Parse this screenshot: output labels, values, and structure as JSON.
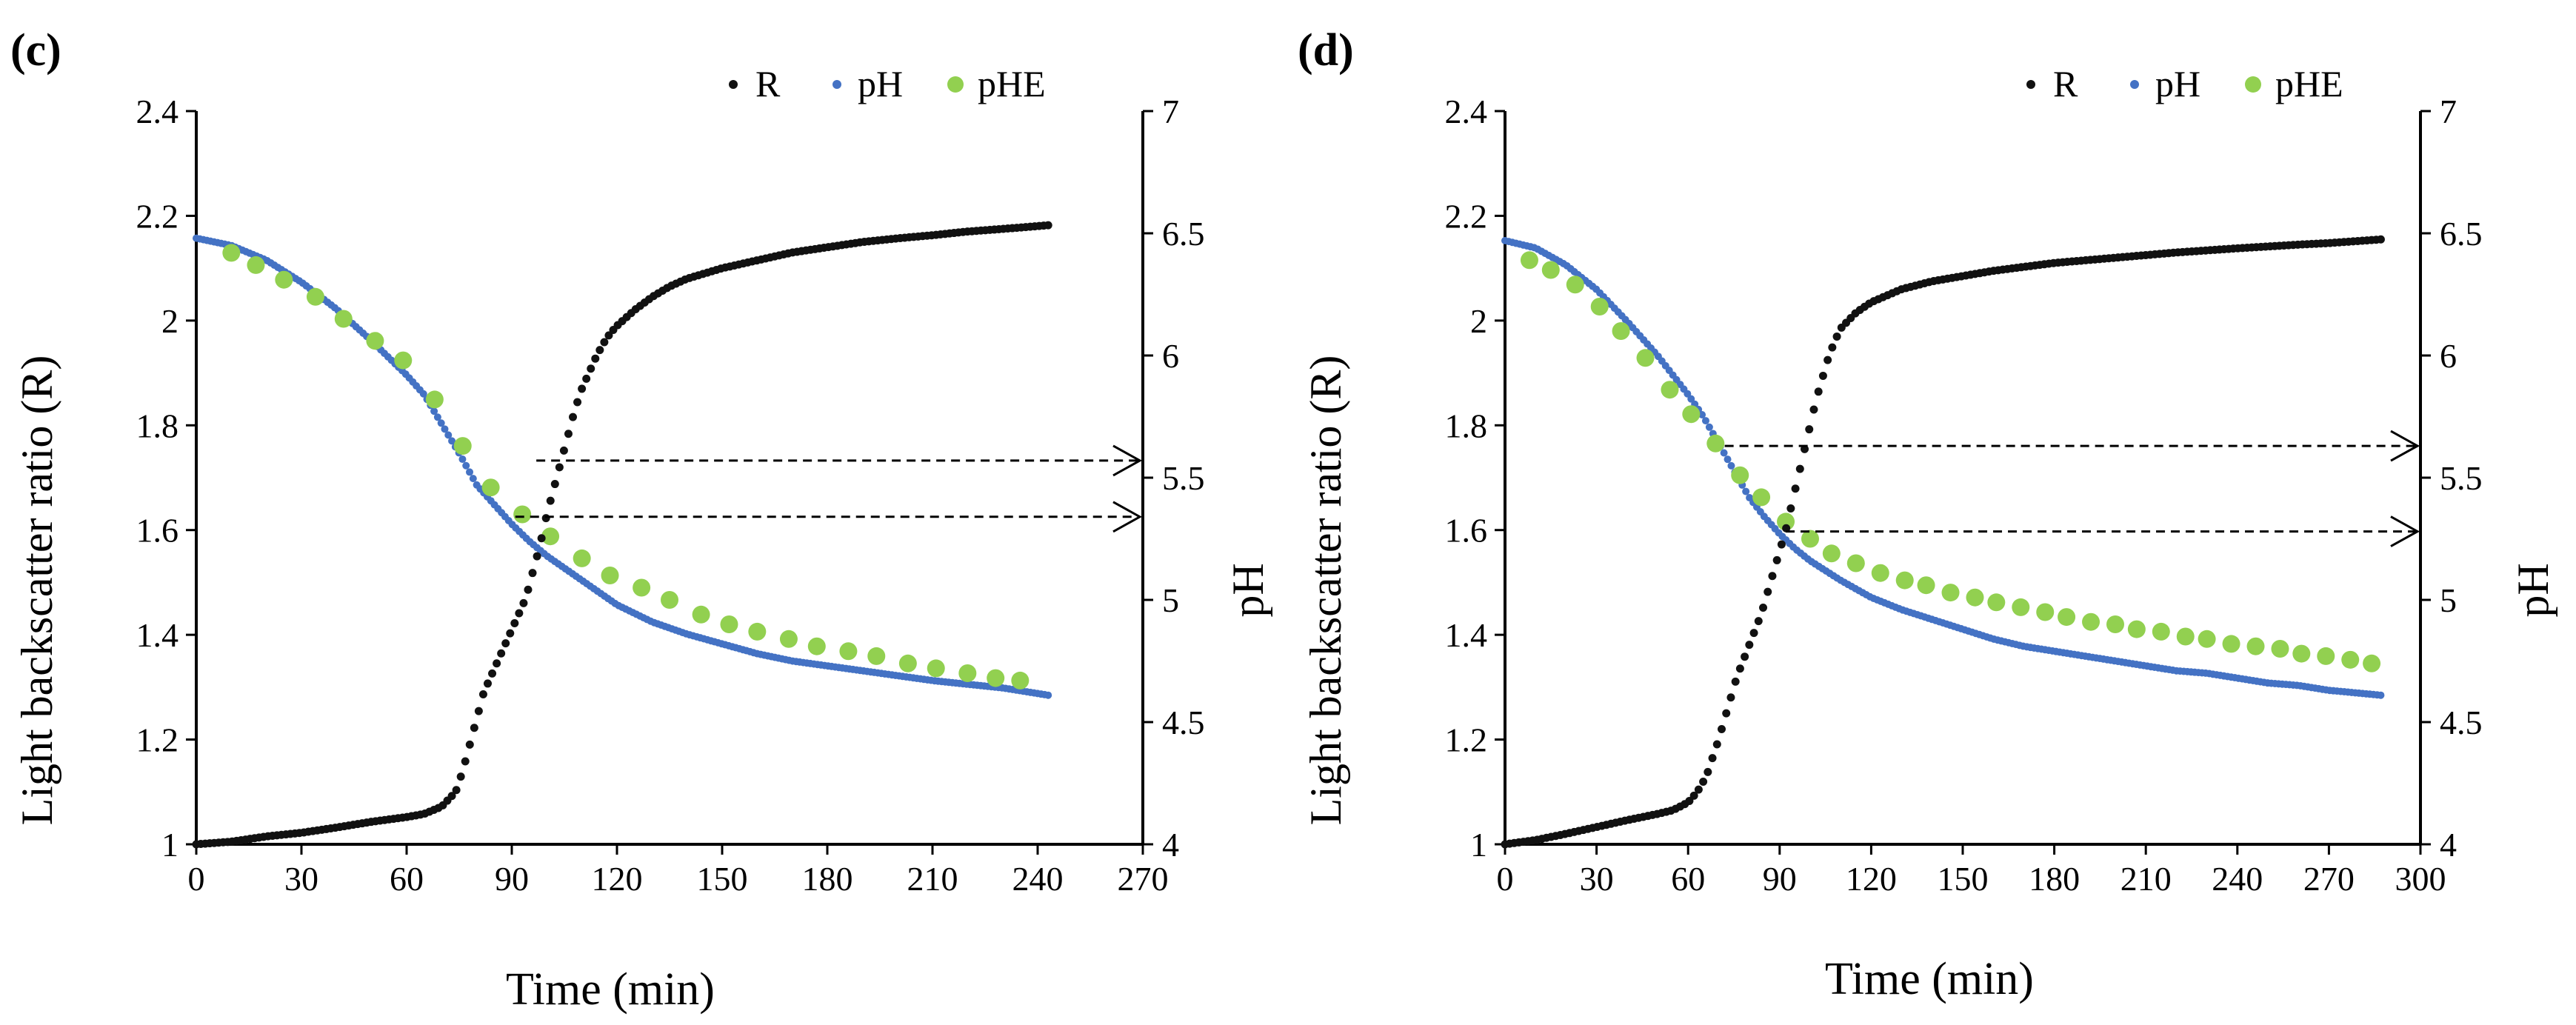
{
  "chart_data": [
    {
      "type": "scatter",
      "panel_label": "(c)",
      "xlabel": "Time  (min)",
      "ylabel_left": "Light  backscatter ratio  (R)",
      "ylabel_right": "pH",
      "xlim": [
        0,
        270
      ],
      "xticks": [
        0,
        30,
        60,
        90,
        120,
        150,
        180,
        210,
        240,
        270
      ],
      "ylim_left": [
        1,
        2.4
      ],
      "yticks_left": [
        "1",
        "1.2",
        "1.4",
        "1.6",
        "1.8",
        "2",
        "2.2",
        "2.4"
      ],
      "ylim_right": [
        4,
        7
      ],
      "yticks_right": [
        "4",
        "4.5",
        "5",
        "5.5",
        "6",
        "6.5",
        "7"
      ],
      "legend": [
        "R",
        "pH",
        "pHE"
      ],
      "colors": {
        "R": "#111111",
        "pH": "#4472c4",
        "pHE": "#92d050"
      },
      "series": [
        {
          "name": "R",
          "axis": "left",
          "x": [
            0,
            10,
            20,
            30,
            40,
            50,
            60,
            65,
            70,
            74,
            76,
            78,
            80,
            82,
            84,
            86,
            88,
            90,
            92,
            94,
            96,
            98,
            100,
            102,
            104,
            106,
            108,
            110,
            112,
            114,
            116,
            118,
            120,
            125,
            130,
            135,
            140,
            150,
            160,
            170,
            180,
            190,
            200,
            210,
            220,
            230,
            243
          ],
          "y": [
            1.0,
            1.005,
            1.015,
            1.022,
            1.032,
            1.043,
            1.052,
            1.058,
            1.072,
            1.1,
            1.14,
            1.19,
            1.24,
            1.29,
            1.32,
            1.35,
            1.38,
            1.41,
            1.44,
            1.47,
            1.52,
            1.57,
            1.63,
            1.68,
            1.73,
            1.78,
            1.83,
            1.87,
            1.9,
            1.93,
            1.955,
            1.975,
            1.99,
            2.02,
            2.045,
            2.065,
            2.08,
            2.1,
            2.115,
            2.13,
            2.14,
            2.15,
            2.157,
            2.163,
            2.17,
            2.175,
            2.182
          ]
        },
        {
          "name": "pH",
          "axis": "right",
          "x": [
            0,
            10,
            20,
            30,
            40,
            50,
            60,
            65,
            70,
            75,
            80,
            85,
            90,
            95,
            100,
            105,
            110,
            120,
            130,
            140,
            150,
            160,
            170,
            180,
            190,
            200,
            210,
            220,
            230,
            243
          ],
          "y": [
            6.48,
            6.45,
            6.39,
            6.3,
            6.19,
            6.06,
            5.92,
            5.84,
            5.72,
            5.6,
            5.47,
            5.39,
            5.31,
            5.24,
            5.18,
            5.13,
            5.08,
            4.98,
            4.91,
            4.86,
            4.82,
            4.78,
            4.75,
            4.73,
            4.71,
            4.69,
            4.67,
            4.655,
            4.64,
            4.61
          ]
        },
        {
          "name": "pHE",
          "axis": "right",
          "x": [
            10,
            17,
            25,
            34,
            42,
            51,
            59,
            68,
            76,
            84,
            93,
            101,
            110,
            118,
            127,
            135,
            144,
            152,
            160,
            169,
            177,
            186,
            194,
            203,
            211,
            220,
            228,
            235
          ],
          "y": [
            6.42,
            6.37,
            6.31,
            6.24,
            6.15,
            6.06,
            5.98,
            5.82,
            5.63,
            5.46,
            5.35,
            5.26,
            5.17,
            5.1,
            5.05,
            5.0,
            4.94,
            4.9,
            4.87,
            4.84,
            4.81,
            4.79,
            4.77,
            4.74,
            4.72,
            4.7,
            4.68,
            4.67
          ]
        }
      ],
      "arrows": [
        {
          "from_x": 97,
          "y_right": 5.57
        },
        {
          "from_x": 91,
          "y_right": 5.34
        }
      ]
    },
    {
      "type": "scatter",
      "panel_label": "(d)",
      "xlabel": "Time  (min)",
      "ylabel_left": "Light  backscatter ratio  (R)",
      "ylabel_right": "pH",
      "xlim": [
        0,
        300
      ],
      "xticks": [
        0,
        30,
        60,
        90,
        120,
        150,
        180,
        210,
        240,
        270,
        300
      ],
      "ylim_left": [
        1,
        2.4
      ],
      "yticks_left": [
        "1",
        "1.2",
        "1.4",
        "1.6",
        "1.8",
        "2",
        "2.2",
        "2.4"
      ],
      "ylim_right": [
        4,
        7
      ],
      "yticks_right": [
        "4",
        "4.5",
        "5",
        "5.5",
        "6",
        "6.5",
        "7"
      ],
      "legend": [
        "R",
        "pH",
        "pHE"
      ],
      "colors": {
        "R": "#111111",
        "pH": "#4472c4",
        "pHE": "#92d050"
      },
      "series": [
        {
          "name": "R",
          "axis": "left",
          "x": [
            0,
            10,
            20,
            30,
            40,
            50,
            55,
            60,
            63,
            66,
            68,
            70,
            72,
            74,
            76,
            78,
            80,
            82,
            84,
            86,
            88,
            90,
            92,
            94,
            96,
            98,
            100,
            102,
            104,
            106,
            108,
            110,
            115,
            120,
            130,
            140,
            150,
            160,
            180,
            200,
            220,
            240,
            260,
            270,
            287
          ],
          "y": [
            1.0,
            1.008,
            1.02,
            1.033,
            1.046,
            1.058,
            1.065,
            1.08,
            1.1,
            1.13,
            1.165,
            1.2,
            1.24,
            1.28,
            1.32,
            1.35,
            1.38,
            1.41,
            1.44,
            1.48,
            1.52,
            1.56,
            1.6,
            1.65,
            1.7,
            1.75,
            1.8,
            1.85,
            1.89,
            1.93,
            1.96,
            1.985,
            2.015,
            2.035,
            2.06,
            2.075,
            2.085,
            2.095,
            2.11,
            2.12,
            2.13,
            2.138,
            2.145,
            2.148,
            2.155
          ]
        },
        {
          "name": "pH",
          "axis": "right",
          "x": [
            0,
            10,
            20,
            30,
            40,
            50,
            60,
            65,
            70,
            75,
            80,
            85,
            90,
            95,
            100,
            110,
            120,
            130,
            140,
            150,
            160,
            170,
            180,
            190,
            200,
            210,
            220,
            230,
            240,
            250,
            260,
            270,
            287
          ],
          "y": [
            6.47,
            6.44,
            6.37,
            6.27,
            6.14,
            6.0,
            5.84,
            5.75,
            5.64,
            5.53,
            5.42,
            5.34,
            5.27,
            5.21,
            5.16,
            5.08,
            5.01,
            4.96,
            4.92,
            4.88,
            4.84,
            4.81,
            4.79,
            4.77,
            4.75,
            4.73,
            4.71,
            4.7,
            4.68,
            4.66,
            4.65,
            4.63,
            4.61
          ]
        },
        {
          "name": "pHE",
          "axis": "right",
          "x": [
            8,
            15,
            23,
            31,
            38,
            46,
            54,
            61,
            69,
            77,
            84,
            92,
            100,
            107,
            115,
            123,
            131,
            138,
            146,
            154,
            161,
            169,
            177,
            184,
            192,
            200,
            207,
            215,
            223,
            230,
            238,
            246,
            254,
            261,
            269,
            277,
            284
          ],
          "y": [
            6.39,
            6.35,
            6.29,
            6.2,
            6.1,
            5.99,
            5.86,
            5.76,
            5.64,
            5.51,
            5.42,
            5.32,
            5.25,
            5.19,
            5.15,
            5.11,
            5.08,
            5.06,
            5.03,
            5.01,
            4.99,
            4.97,
            4.95,
            4.93,
            4.91,
            4.9,
            4.88,
            4.87,
            4.85,
            4.84,
            4.82,
            4.81,
            4.8,
            4.78,
            4.77,
            4.755,
            4.74
          ]
        }
      ],
      "arrows": [
        {
          "from_x": 72,
          "y_right": 5.63
        },
        {
          "from_x": 92,
          "y_right": 5.28
        }
      ]
    }
  ]
}
